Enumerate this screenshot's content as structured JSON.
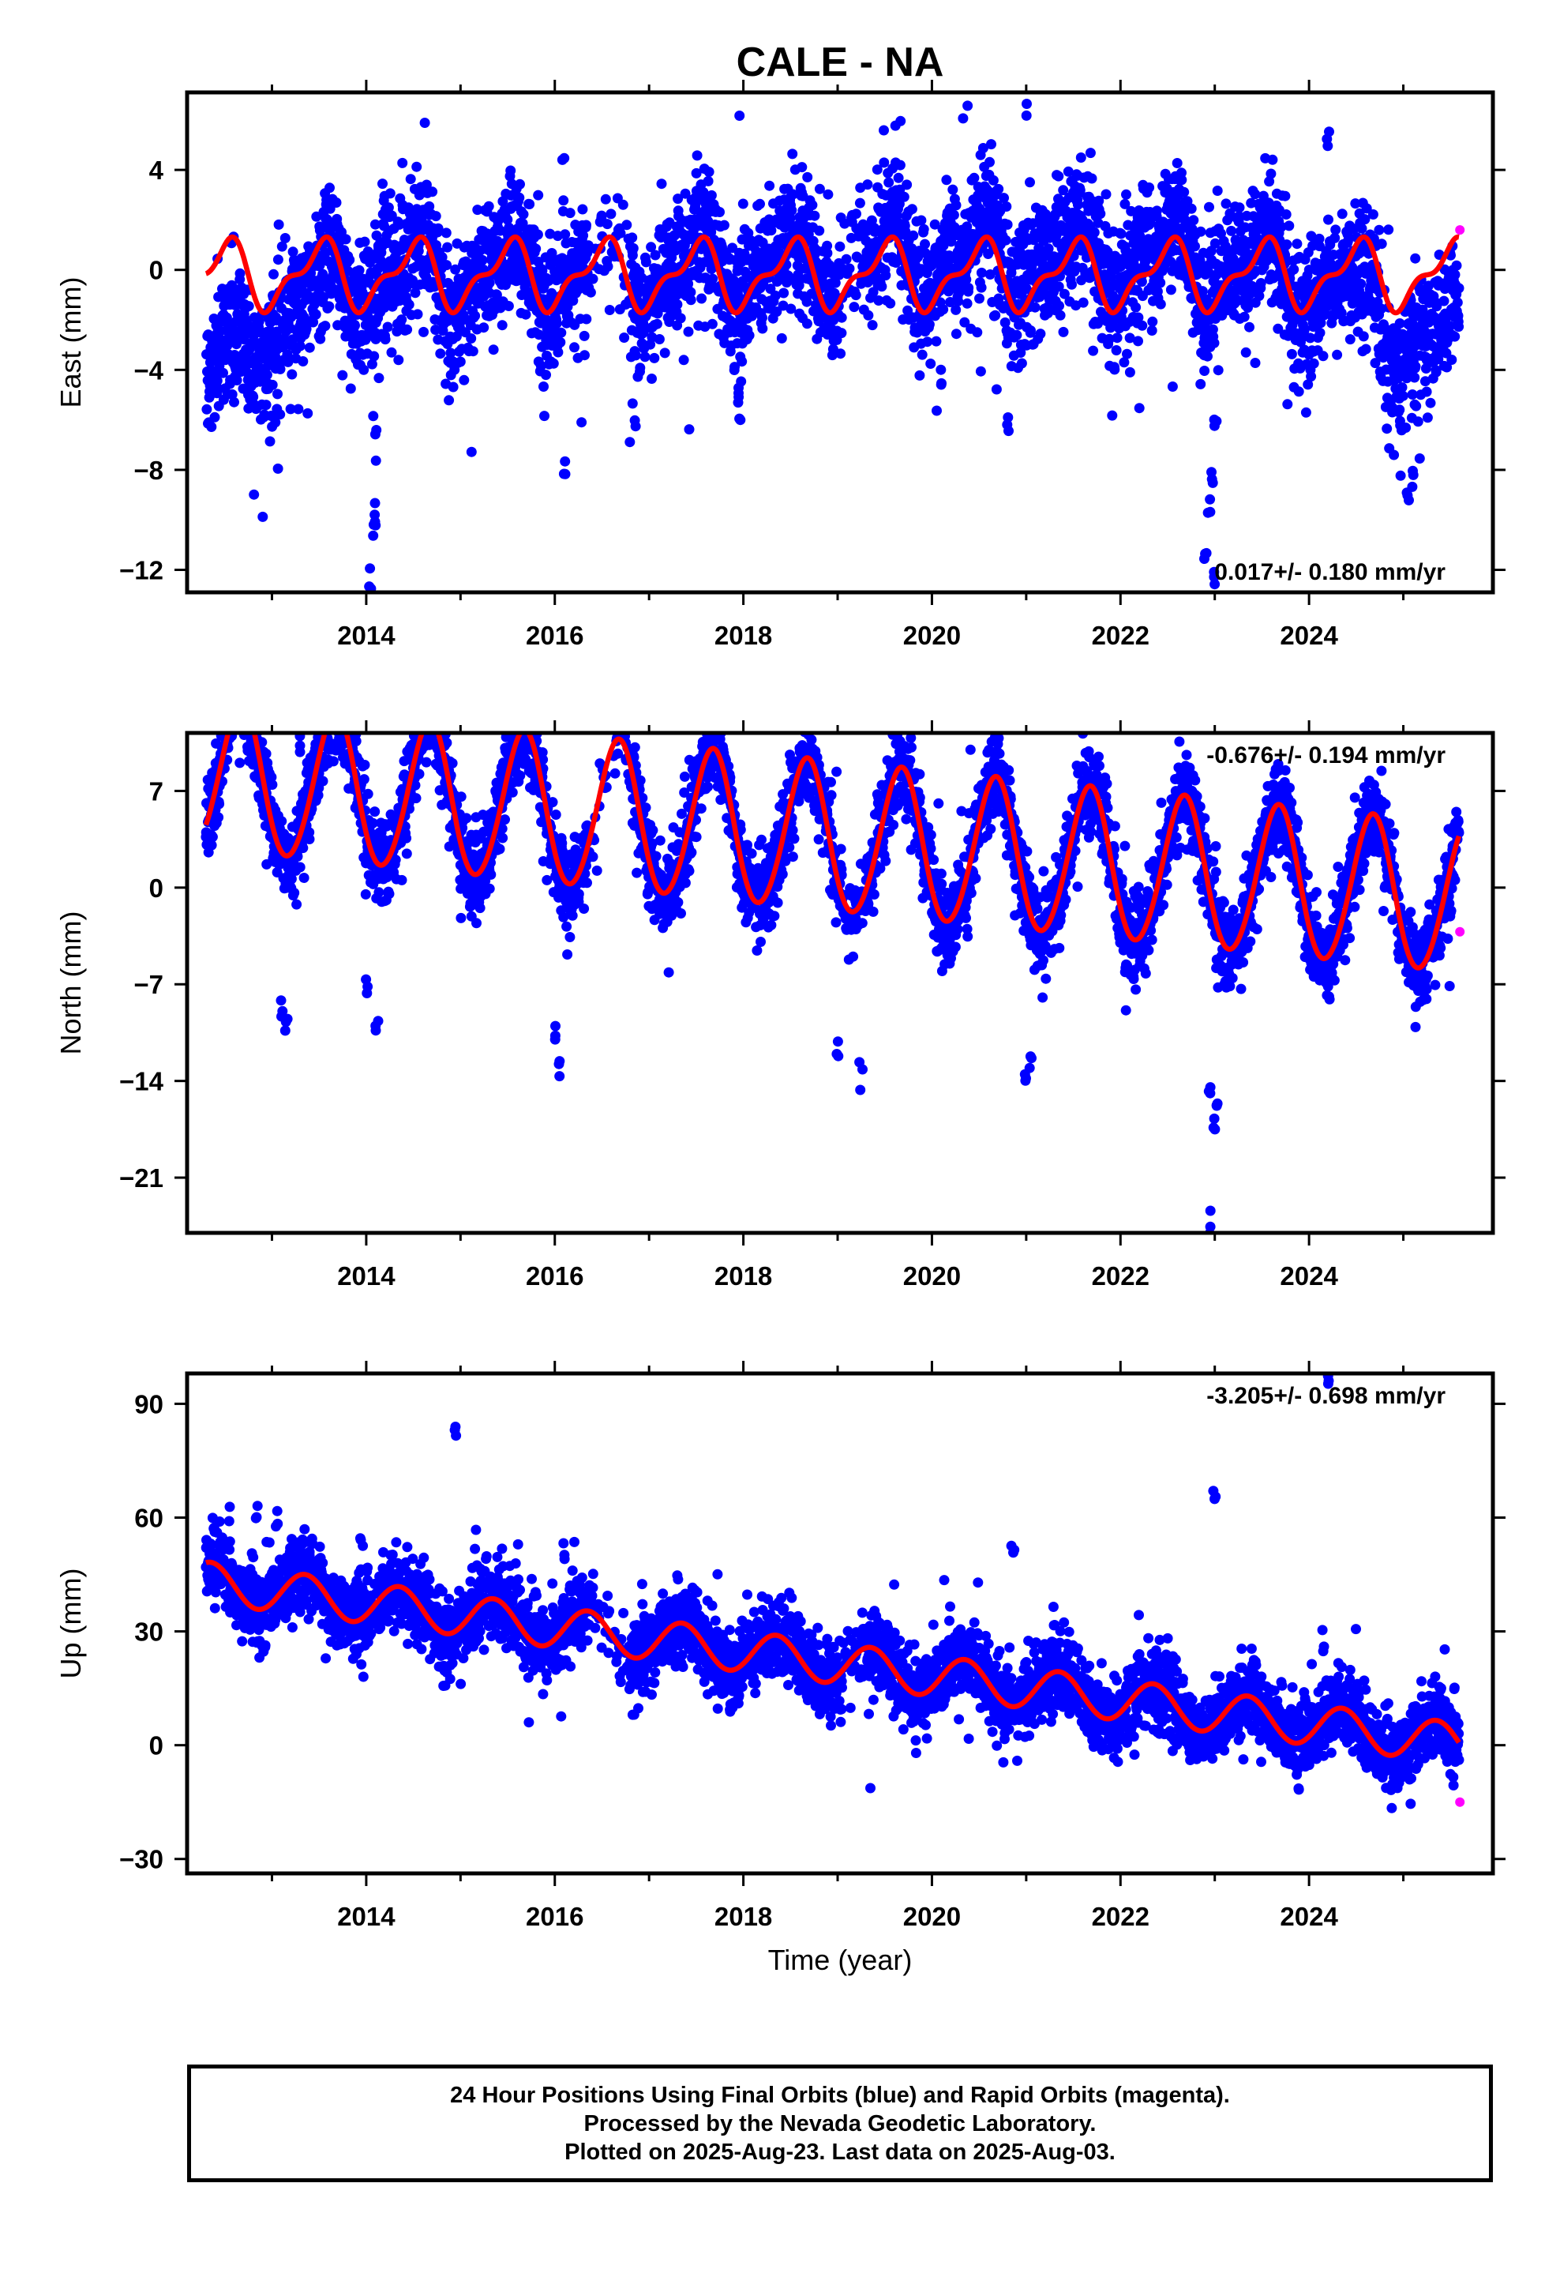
{
  "figure": {
    "title": "CALE - NA",
    "xlabel": "Time (year)",
    "footer": [
      "24 Hour Positions Using Final Orbits (blue) and Rapid Orbits (magenta).",
      "Processed by the Nevada Geodetic Laboratory.",
      "Plotted on 2025-Aug-23. Last data on 2025-Aug-03."
    ],
    "colors": {
      "final": "#0000ff",
      "rapid": "#ff00ff",
      "model": "#ff0000"
    }
  },
  "chart_data": [
    {
      "type": "scatter",
      "ylabel": "East (mm)",
      "rate": "0.017+/- 0.180 mm/yr",
      "rate_position": "bottom-right",
      "xlim": [
        2012.1,
        2025.95
      ],
      "ylim": [
        -12.9,
        7.1
      ],
      "xticks": [
        2014,
        2016,
        2018,
        2020,
        2022,
        2024
      ],
      "yticks": [
        4,
        0,
        -4,
        -8,
        -12
      ],
      "ytick_labels": [
        "4",
        "0",
        "−4",
        "−8",
        "−12"
      ],
      "data_span": [
        2012.3,
        2025.59
      ],
      "baseline": [
        [
          2012.3,
          -4.5
        ],
        [
          2012.7,
          -3.0
        ],
        [
          2013.3,
          -1.5
        ],
        [
          2014.0,
          -0.2
        ],
        [
          2016.0,
          -0.2
        ],
        [
          2019.0,
          0.3
        ],
        [
          2021.5,
          0.6
        ],
        [
          2023.0,
          0.2
        ],
        [
          2024.3,
          -0.5
        ],
        [
          2024.8,
          -2.0
        ],
        [
          2025.59,
          -2.8
        ]
      ],
      "scatter_sd": 1.3,
      "model": {
        "offset": 0.0,
        "trend": 0.017,
        "annual_amp": 1.2,
        "annual_phase": 0.25,
        "semiannual_amp": 0.55,
        "semiannual_phase": 0.0
      },
      "events": [
        {
          "t": 2014.05,
          "v": -12.3
        },
        {
          "t": 2014.08,
          "v": -10.5
        },
        {
          "t": 2014.1,
          "v": -9.5
        },
        {
          "t": 2014.1,
          "v": -6.5
        },
        {
          "t": 2016.1,
          "v": -7.8
        },
        {
          "t": 2016.85,
          "v": -6.0
        },
        {
          "t": 2017.95,
          "v": -6.0
        },
        {
          "t": 2017.95,
          "v": -4.8
        },
        {
          "t": 2020.1,
          "v": -4.5
        },
        {
          "t": 2020.4,
          "v": 6.9
        },
        {
          "t": 2021.0,
          "v": 6.7
        },
        {
          "t": 2020.8,
          "v": -5.7
        },
        {
          "t": 2022.9,
          "v": -11.0
        },
        {
          "t": 2022.95,
          "v": -9.5
        },
        {
          "t": 2022.97,
          "v": -8.0
        },
        {
          "t": 2023.0,
          "v": -6.5
        },
        {
          "t": 2023.0,
          "v": -12.3
        },
        {
          "t": 2024.2,
          "v": 5.3
        },
        {
          "t": 2025.05,
          "v": -9.2
        },
        {
          "t": 2025.1,
          "v": -8.6
        }
      ],
      "rapid_points": [
        {
          "t": 2025.6,
          "v": 1.6
        }
      ]
    },
    {
      "type": "scatter",
      "ylabel": "North (mm)",
      "rate": "-0.676+/- 0.194 mm/yr",
      "rate_position": "top-right",
      "xlim": [
        2012.1,
        2025.95
      ],
      "ylim": [
        -25.0,
        11.2
      ],
      "xticks": [
        2014,
        2016,
        2018,
        2020,
        2022,
        2024
      ],
      "yticks": [
        7,
        0,
        -7,
        -14,
        -21
      ],
      "ytick_labels": [
        "7",
        "0",
        "−7",
        "−14",
        "−21"
      ],
      "data_span": [
        2012.3,
        2025.59
      ],
      "baseline": null,
      "scatter_sd": 1.5,
      "model": {
        "offset": 3.5,
        "trend": -0.676,
        "annual_amp": 5.4,
        "annual_phase": 0.42,
        "semiannual_amp": 0.35,
        "semiannual_phase": 0.1
      },
      "events": [
        {
          "t": 2013.15,
          "v": -10.5
        },
        {
          "t": 2013.1,
          "v": -9.0
        },
        {
          "t": 2014.0,
          "v": -7.5
        },
        {
          "t": 2014.1,
          "v": -10.0
        },
        {
          "t": 2016.05,
          "v": -13.0
        },
        {
          "t": 2016.0,
          "v": -11.0
        },
        {
          "t": 2019.0,
          "v": -12.0
        },
        {
          "t": 2019.25,
          "v": -13.5
        },
        {
          "t": 2021.0,
          "v": -13.8
        },
        {
          "t": 2021.05,
          "v": -12.5
        },
        {
          "t": 2022.95,
          "v": -14.5
        },
        {
          "t": 2023.0,
          "v": -17.0
        },
        {
          "t": 2023.02,
          "v": -15.5
        },
        {
          "t": 2022.95,
          "v": -24.5
        },
        {
          "t": 2013.3,
          "v": 10.5
        },
        {
          "t": 2013.6,
          "v": 10.8
        }
      ],
      "rapid_points": [
        {
          "t": 2025.6,
          "v": -3.2
        }
      ]
    },
    {
      "type": "scatter",
      "ylabel": "Up (mm)",
      "rate": "-3.205+/- 0.698 mm/yr",
      "rate_position": "top-right",
      "xlim": [
        2012.1,
        2025.95
      ],
      "ylim": [
        -33.8,
        98.0
      ],
      "xticks": [
        2014,
        2016,
        2018,
        2020,
        2022,
        2024
      ],
      "yticks": [
        90,
        60,
        30,
        0,
        -30
      ],
      "ytick_labels": [
        "90",
        "60",
        "30",
        "0",
        "−30"
      ],
      "data_span": [
        2012.3,
        2025.59
      ],
      "baseline": null,
      "scatter_sd": 5.0,
      "model": {
        "offset": 21.5,
        "trend": -3.205,
        "annual_amp": 5.4,
        "annual_phase": 0.1,
        "semiannual_amp": 0.0,
        "semiannual_phase": 0.0
      },
      "events": [
        {
          "t": 2014.95,
          "v": 82
        },
        {
          "t": 2012.85,
          "v": 62
        },
        {
          "t": 2013.05,
          "v": 60
        },
        {
          "t": 2013.2,
          "v": 53
        },
        {
          "t": 2013.4,
          "v": 50
        },
        {
          "t": 2013.95,
          "v": 54
        },
        {
          "t": 2015.8,
          "v": 42
        },
        {
          "t": 2016.1,
          "v": 51
        },
        {
          "t": 2016.85,
          "v": 30
        },
        {
          "t": 2020.85,
          "v": 52
        },
        {
          "t": 2021.3,
          "v": 33
        },
        {
          "t": 2023.0,
          "v": 66
        },
        {
          "t": 2024.2,
          "v": 95
        },
        {
          "t": 2024.15,
          "v": 26
        },
        {
          "t": 2014.0,
          "v": 46
        },
        {
          "t": 2013.9,
          "v": 41
        }
      ],
      "rapid_points": [
        {
          "t": 2025.6,
          "v": -15.0
        }
      ]
    }
  ]
}
